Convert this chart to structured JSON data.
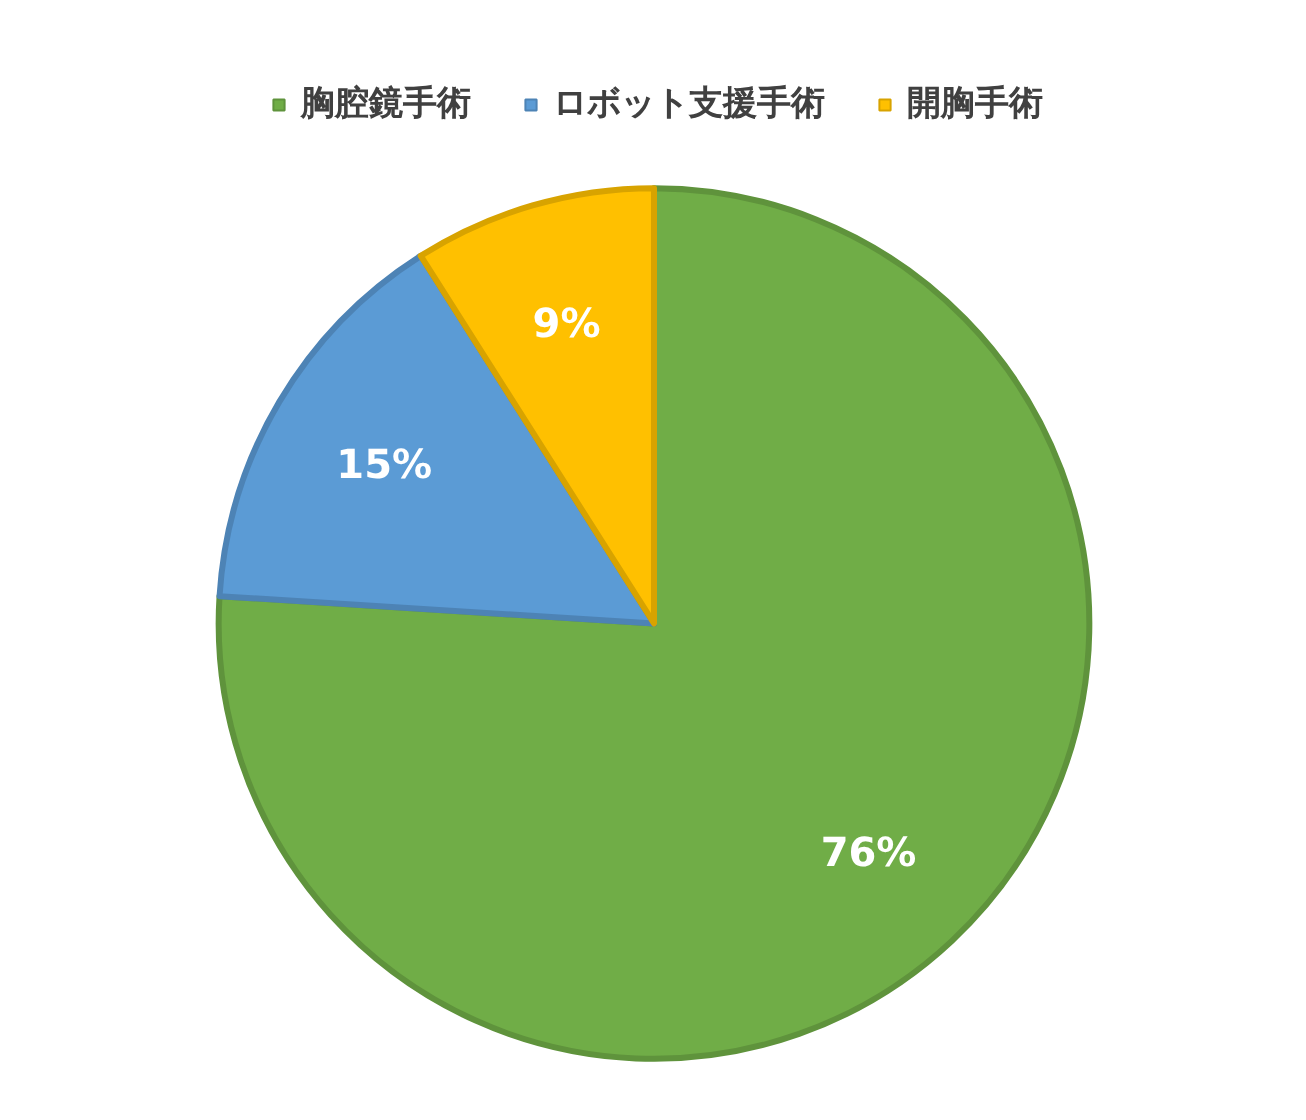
{
  "chart_data": {
    "type": "pie",
    "categories": [
      "胸腔鏡手術",
      "ロボット支援手術",
      "開胸手術"
    ],
    "values": [
      76,
      15,
      9
    ],
    "colors": [
      "#70ad47",
      "#5b9bd5",
      "#ffc000"
    ],
    "value_labels": [
      "76%",
      "15%",
      "9%"
    ],
    "legend": "top"
  }
}
